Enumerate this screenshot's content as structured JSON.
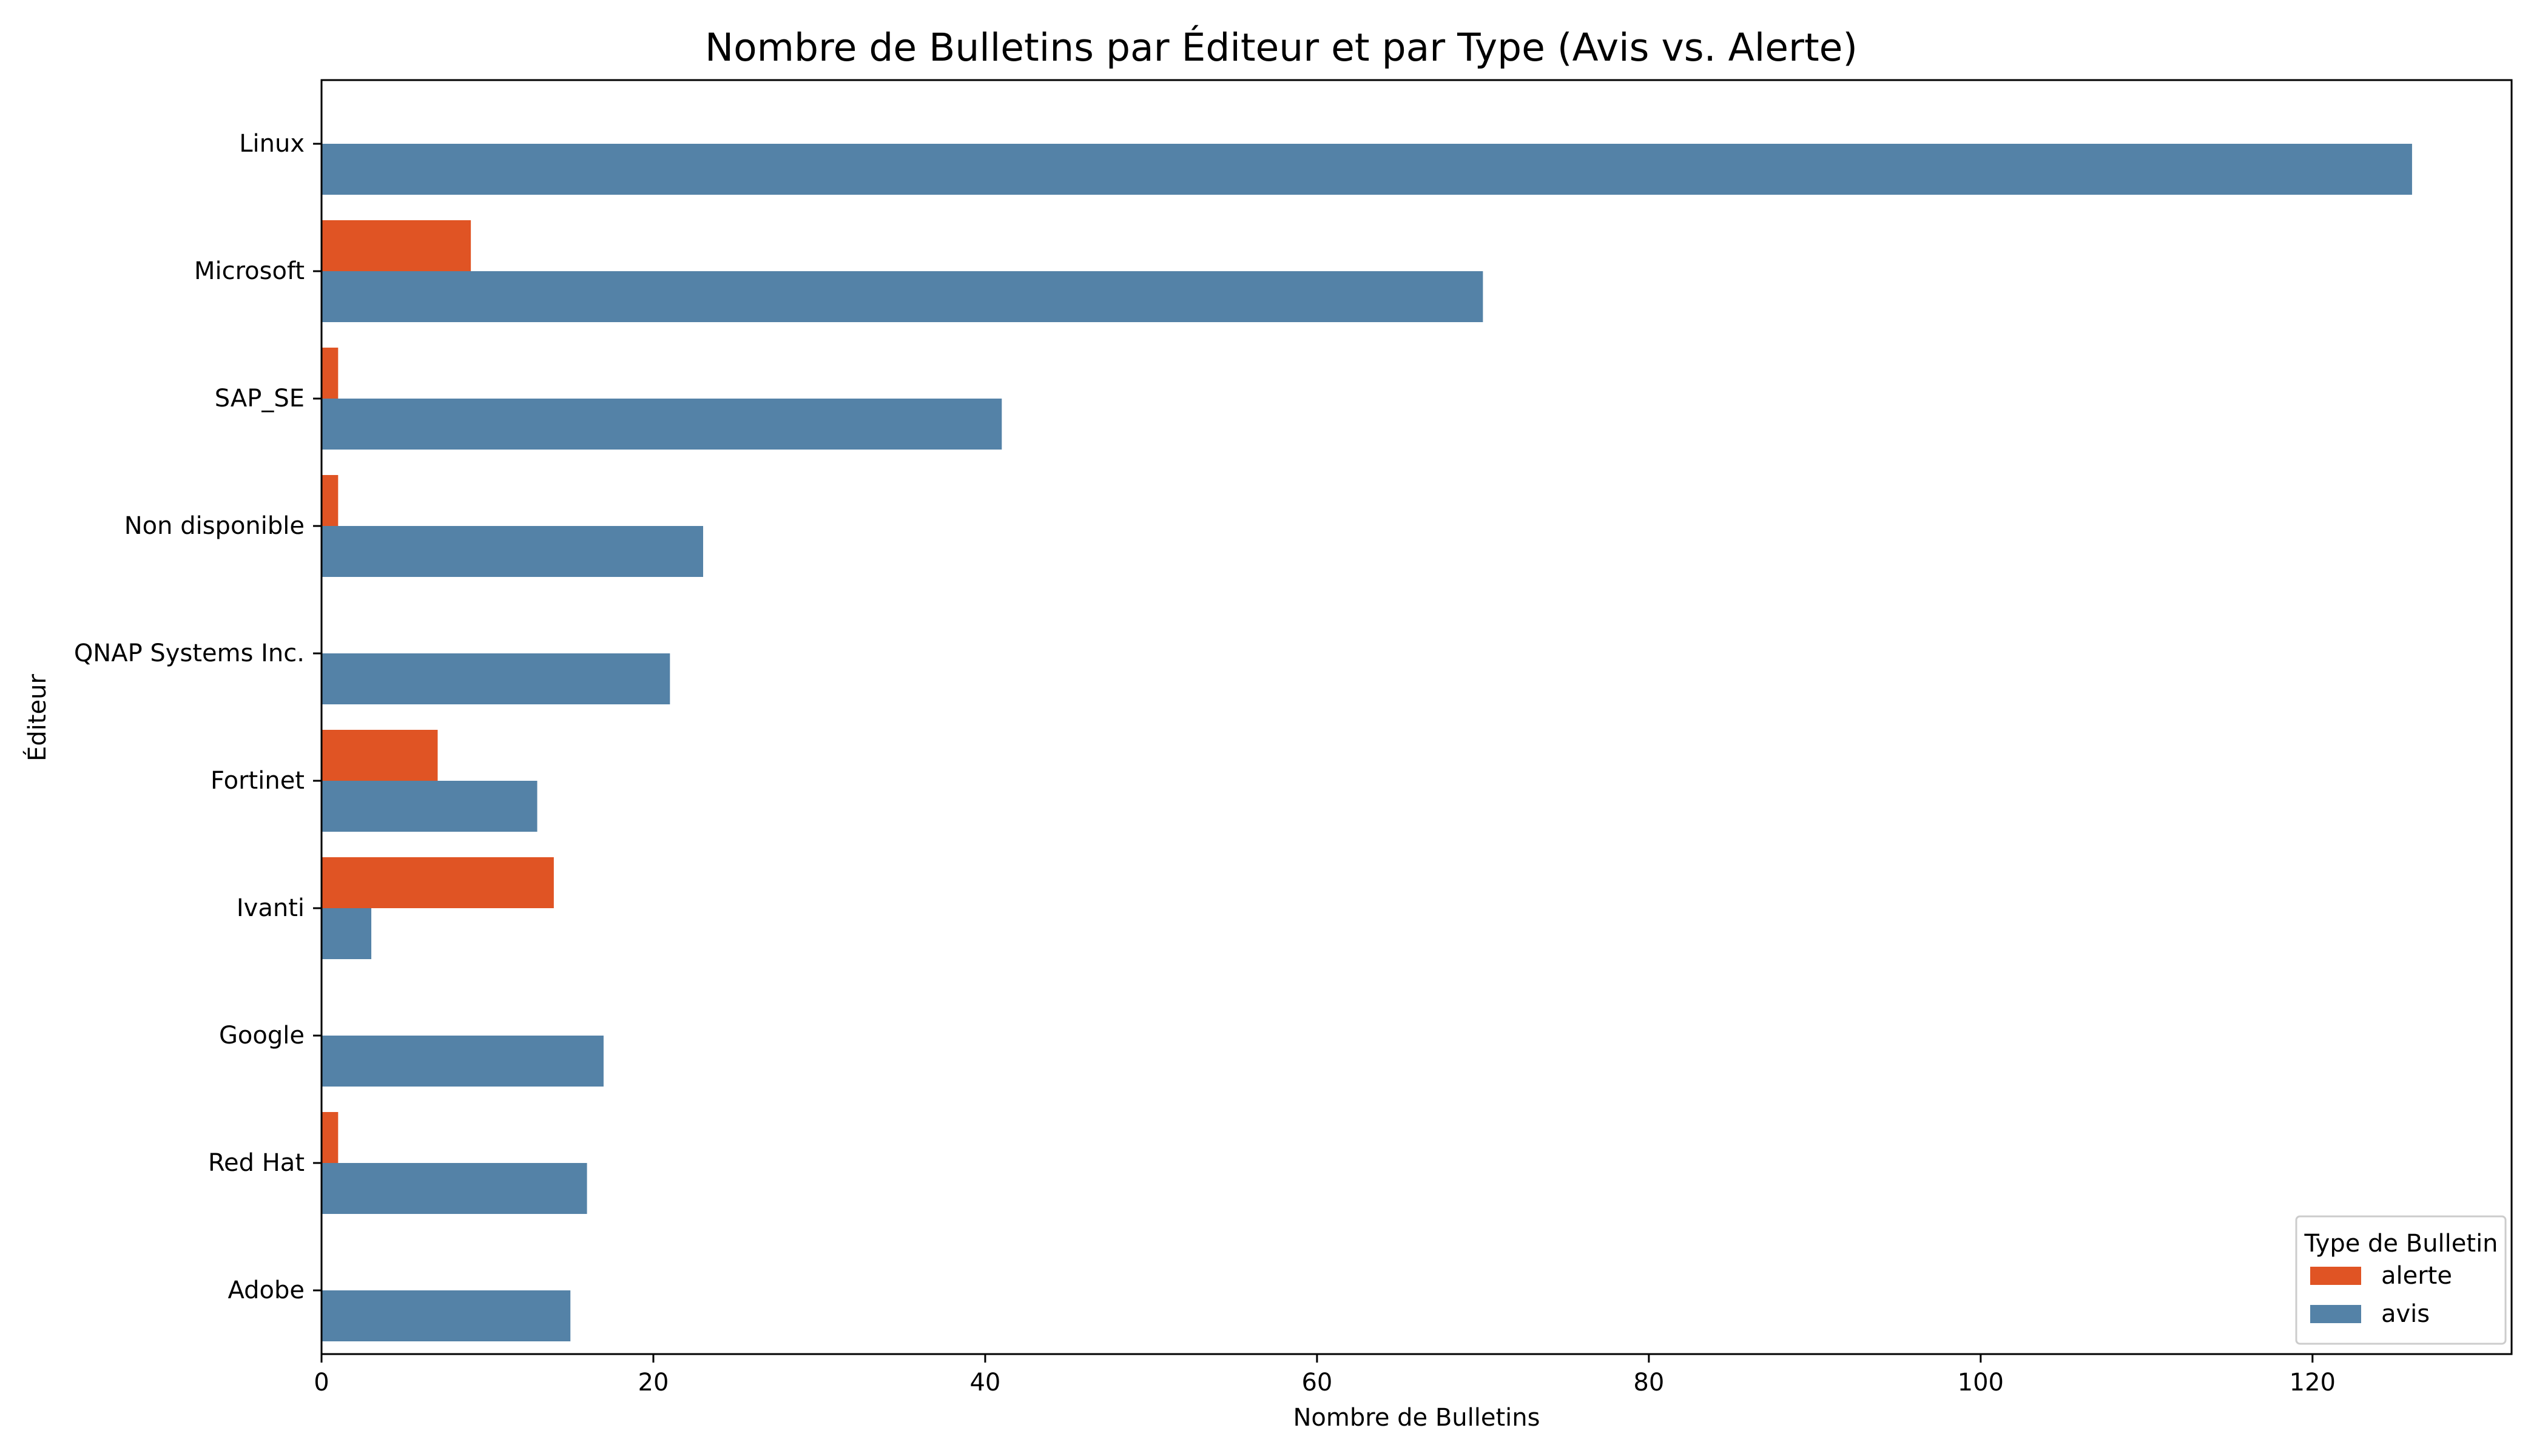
{
  "chart_data": {
    "type": "bar",
    "orientation": "horizontal",
    "title": "Nombre de Bulletins par Éditeur et par Type (Avis vs. Alerte)",
    "xlabel": "Nombre de Bulletins",
    "ylabel": "Éditeur",
    "categories": [
      "Linux",
      "Microsoft",
      "SAP_SE",
      "Non disponible",
      "QNAP Systems Inc.",
      "Fortinet",
      "Ivanti",
      "Google",
      "Red Hat",
      "Adobe"
    ],
    "series": [
      {
        "name": "alerte",
        "color": "#e05424",
        "values": [
          0,
          9,
          1,
          1,
          0,
          7,
          14,
          0,
          1,
          0
        ]
      },
      {
        "name": "avis",
        "color": "#5482a7",
        "values": [
          126,
          70,
          41,
          23,
          21,
          13,
          3,
          17,
          16,
          15
        ]
      }
    ],
    "xlim": [
      0,
      132
    ],
    "xticks": [
      0,
      20,
      40,
      60,
      80,
      100,
      120
    ],
    "grid": false,
    "legend": {
      "title": "Type de Bulletin",
      "placement": "lower-right"
    }
  }
}
